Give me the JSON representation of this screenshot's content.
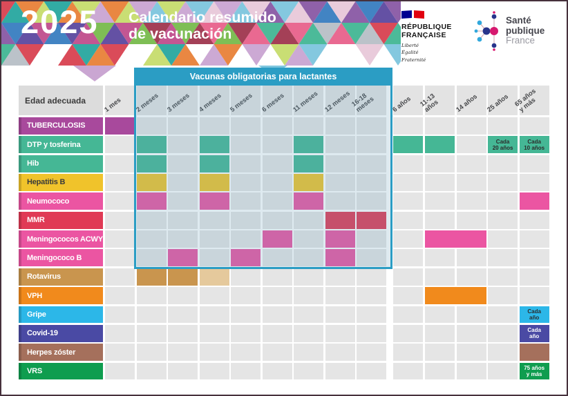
{
  "header": {
    "year": "2025",
    "title": "Calendario resumido\nde vacunación",
    "logos": {
      "republique_francaise": {
        "name_line1": "RÉPUBLIQUE",
        "name_line2": "FRANÇAISE",
        "motto": "Liberté\nÉgalité\nFraternité"
      },
      "sante_publique": {
        "line1": "Santé",
        "line2": "publique",
        "line3": "France"
      }
    }
  },
  "colors": {
    "banner_blue": "#2b9dc4",
    "empty_cell": "#e5e5e5",
    "header_cell": "#e3e3e3",
    "corner_cell": "#dcdcdc"
  },
  "chart_data": {
    "type": "table",
    "title": "Calendario resumido de vacunación 2025",
    "corner_label": "Edad adecuada",
    "banner": "Vacunas obligatorias para lactantes",
    "columns": [
      "1 mes",
      "2 meses",
      "3 meses",
      "4 meses",
      "5 meses",
      "6 meses",
      "11 meses",
      "12 meses",
      "16-18\nmeses",
      "6 años",
      "11-13\naños",
      "14 años",
      "25 años",
      "65 años\ny más"
    ],
    "mandatory_box": {
      "first_col": 1,
      "last_col": 8
    },
    "rows": [
      {
        "label": "TUBERCULOSIS",
        "color": "#a8499c",
        "marks": [
          {
            "col": 0
          }
        ]
      },
      {
        "label": "DTP y tosferina",
        "color": "#45b795",
        "marks": [
          {
            "col": 1
          },
          {
            "col": 3
          },
          {
            "col": 6
          },
          {
            "col": 9
          },
          {
            "col": 10
          },
          {
            "col": 12,
            "text": "Cada\n20 años",
            "dark_text": true
          },
          {
            "col": 13,
            "text": "Cada\n10 años",
            "dark_text": true
          }
        ]
      },
      {
        "label": "Hib",
        "color": "#45b795",
        "marks": [
          {
            "col": 1
          },
          {
            "col": 3
          },
          {
            "col": 6
          }
        ]
      },
      {
        "label": "Hepatitis B",
        "color": "#f0c32b",
        "label_dark": true,
        "marks": [
          {
            "col": 1
          },
          {
            "col": 3
          },
          {
            "col": 6
          }
        ]
      },
      {
        "label": "Neumococo",
        "color": "#eb55a2",
        "marks": [
          {
            "col": 1
          },
          {
            "col": 3
          },
          {
            "col": 6
          },
          {
            "col": 13
          }
        ]
      },
      {
        "label": "MMR",
        "color": "#e03a55",
        "marks": [
          {
            "col": 7
          },
          {
            "col": 8
          }
        ]
      },
      {
        "label": "Meningococos ACWY",
        "color": "#eb55a2",
        "marks": [
          {
            "col": 5
          },
          {
            "col": 7
          },
          {
            "col": 10,
            "span": 2
          }
        ]
      },
      {
        "label": "Meningococo B",
        "color": "#eb55a2",
        "marks": [
          {
            "col": 2
          },
          {
            "col": 4
          },
          {
            "col": 7
          }
        ]
      },
      {
        "label": "Rotavirus",
        "color": "#c9954e",
        "marks": [
          {
            "col": 1
          },
          {
            "col": 2
          },
          {
            "col": 3,
            "color": "#e5c99c"
          }
        ]
      },
      {
        "label": "VPH",
        "color": "#f18a1c",
        "marks": [
          {
            "col": 10,
            "span": 2
          }
        ]
      },
      {
        "label": "Gripe",
        "color": "#2cb7e8",
        "marks": [
          {
            "col": 13,
            "text": "Cada\naño",
            "dark_text": true
          }
        ]
      },
      {
        "label": "Covid-19",
        "color": "#4a4aa4",
        "marks": [
          {
            "col": 13,
            "text": "Cada\naño"
          }
        ]
      },
      {
        "label": "Herpes zóster",
        "color": "#a5705c",
        "marks": [
          {
            "col": 13
          }
        ]
      },
      {
        "label": "VRS",
        "color": "#0f9d4f",
        "marks": [
          {
            "col": 13,
            "text": "75 años\ny más"
          }
        ]
      }
    ]
  }
}
